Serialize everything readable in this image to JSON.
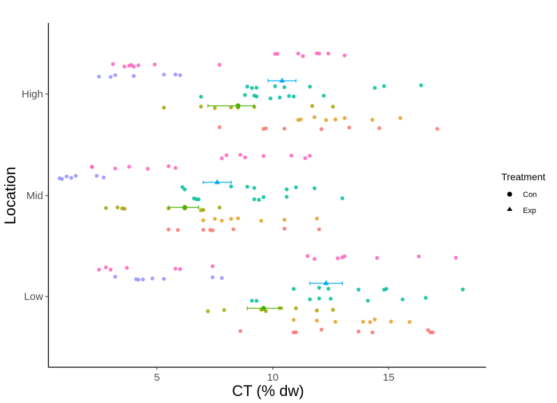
{
  "chart_data": {
    "type": "scatter",
    "xlabel": "CT (% dw)",
    "ylabel": "Location",
    "xlim": [
      0.3,
      19.2
    ],
    "x_ticks": [
      5,
      10,
      15
    ],
    "categories": [
      "Low",
      "Mid",
      "High"
    ],
    "legend": {
      "title": "Treatment",
      "entries": [
        {
          "label": "Con",
          "shape": "circle"
        },
        {
          "label": "Exp",
          "shape": "triangle"
        }
      ],
      "position": "right"
    },
    "colors": {
      "red": "#F8766D",
      "orange": "#E69F22",
      "olive": "#A3A500",
      "teal": "#00BF9C",
      "blue": "#00B0F6",
      "purple": "#9590FF",
      "pink": "#FF62BC",
      "mean_con": "#4DAF00",
      "mean_exp": "#00A9F4",
      "axis": "#000000"
    },
    "groups": [
      {
        "category": "High",
        "subgroup": 1,
        "color_key": "red",
        "points": [
          7.7,
          9.6,
          9.7,
          10.5,
          12.1,
          13.3,
          14.6,
          17.1
        ]
      },
      {
        "category": "High",
        "subgroup": 2,
        "color_key": "orange",
        "points": [
          11.1,
          11.2,
          11.8,
          12.3,
          12.7,
          13.1,
          14.3,
          15.5
        ]
      },
      {
        "category": "High",
        "subgroup": 3,
        "color_key": "olive",
        "points": [
          5.3,
          6.9,
          7.5,
          8.2,
          8.5,
          9.2,
          11.7,
          12.6
        ]
      },
      {
        "category": "High",
        "subgroup": 4,
        "color_key": "teal",
        "points": [
          6.9,
          8.8,
          9.2,
          9.3,
          9.9,
          10.3,
          10.7,
          10.9,
          12.2
        ]
      },
      {
        "category": "High",
        "subgroup": 5,
        "color_key": "teal",
        "points": [
          8.9,
          9.1,
          9.3,
          10.1,
          10.5,
          11.6,
          14.4,
          14.8,
          16.4
        ]
      },
      {
        "category": "High",
        "subgroup": 6,
        "color_key": "purple",
        "points": [
          2.5,
          3.0,
          3.2,
          4.0,
          5.3,
          5.8,
          6.0
        ]
      },
      {
        "category": "High",
        "subgroup": 7,
        "color_key": "pink",
        "points": [
          3.1,
          3.6,
          3.8,
          3.9,
          4.0,
          4.2,
          4.9,
          7.7
        ]
      },
      {
        "category": "High",
        "subgroup": 8,
        "color_key": "pink",
        "points": [
          10.1,
          10.2,
          11.1,
          11.3,
          11.9,
          12.0,
          12.4,
          13.1
        ]
      },
      {
        "category": "Mid",
        "subgroup": 1,
        "color_key": "red",
        "points": [
          5.5,
          5.9,
          7.0,
          7.3,
          7.4,
          8.3,
          10.5,
          12.0
        ]
      },
      {
        "category": "Mid",
        "subgroup": 2,
        "color_key": "orange",
        "points": [
          7.0,
          7.5,
          7.8,
          8.2,
          8.5,
          9.5,
          10.5,
          11.9
        ]
      },
      {
        "category": "Mid",
        "subgroup": 3,
        "color_key": "olive",
        "points": [
          2.8,
          3.3,
          3.5,
          3.6,
          5.5,
          6.2,
          6.9,
          7.0,
          7.7
        ]
      },
      {
        "category": "Mid",
        "subgroup": 4,
        "color_key": "teal",
        "points": [
          6.6,
          6.7,
          6.8,
          9.2,
          9.4,
          9.6,
          10.6,
          13.0
        ]
      },
      {
        "category": "Mid",
        "subgroup": 5,
        "color_key": "teal",
        "points": [
          6.1,
          6.2,
          8.2,
          8.9,
          9.2,
          10.6,
          11.0,
          11.8
        ]
      },
      {
        "category": "Mid",
        "subgroup": 6,
        "color_key": "purple",
        "points": [
          0.8,
          0.9,
          1.1,
          1.3,
          1.5,
          2.4,
          2.7
        ]
      },
      {
        "category": "Mid",
        "subgroup": 7,
        "color_key": "pink",
        "points": [
          2.2,
          2.2,
          3.2,
          3.8,
          4.6,
          5.5,
          5.8
        ]
      },
      {
        "category": "Mid",
        "subgroup": 8,
        "color_key": "pink",
        "points": [
          7.8,
          8.0,
          8.6,
          8.8,
          9.6,
          10.8,
          11.4,
          11.6
        ]
      },
      {
        "category": "Low",
        "subgroup": 1,
        "color_key": "red",
        "points": [
          8.6,
          10.9,
          11.0,
          12.1,
          13.7,
          14.3,
          16.7,
          16.8,
          16.9
        ]
      },
      {
        "category": "Low",
        "subgroup": 2,
        "color_key": "orange",
        "points": [
          10.9,
          11.9,
          12.7,
          13.9,
          14.2,
          14.4,
          15.1,
          15.9
        ]
      },
      {
        "category": "Low",
        "subgroup": 3,
        "color_key": "olive",
        "points": [
          7.2,
          7.9,
          9.5,
          9.7,
          10.3,
          11.0,
          11.9,
          12.6
        ]
      },
      {
        "category": "Low",
        "subgroup": 4,
        "color_key": "teal",
        "points": [
          9.1,
          9.3,
          11.6,
          12.0,
          12.5,
          14.1,
          15.6,
          16.6
        ]
      },
      {
        "category": "Low",
        "subgroup": 5,
        "color_key": "teal",
        "points": [
          10.9,
          12.0,
          12.4,
          13.7,
          14.8,
          14.9,
          18.2
        ]
      },
      {
        "category": "Low",
        "subgroup": 6,
        "color_key": "purple",
        "points": [
          3.2,
          4.1,
          4.2,
          4.4,
          4.8,
          5.3,
          7.4,
          7.8
        ]
      },
      {
        "category": "Low",
        "subgroup": 7,
        "color_key": "pink",
        "points": [
          2.5,
          2.8,
          3.0,
          3.7,
          5.8,
          6.0,
          7.4
        ]
      },
      {
        "category": "Low",
        "subgroup": 8,
        "color_key": "pink",
        "points": [
          11.5,
          11.8,
          12.8,
          13.0,
          13.1,
          14.5,
          16.3,
          17.9
        ]
      }
    ],
    "summary": [
      {
        "category": "High",
        "treatment": "Con",
        "mean": 8.5,
        "low": 7.2,
        "high": 9.2
      },
      {
        "category": "High",
        "treatment": "Exp",
        "mean": 10.4,
        "low": 9.8,
        "high": 11.0
      },
      {
        "category": "Mid",
        "treatment": "Con",
        "mean": 6.2,
        "low": 5.5,
        "high": 6.8
      },
      {
        "category": "Mid",
        "treatment": "Exp",
        "mean": 7.6,
        "low": 7.0,
        "high": 8.2
      },
      {
        "category": "Low",
        "treatment": "Con",
        "mean": 9.6,
        "low": 8.9,
        "high": 10.4
      },
      {
        "category": "Low",
        "treatment": "Exp",
        "mean": 12.3,
        "low": 11.6,
        "high": 13.0
      }
    ]
  }
}
